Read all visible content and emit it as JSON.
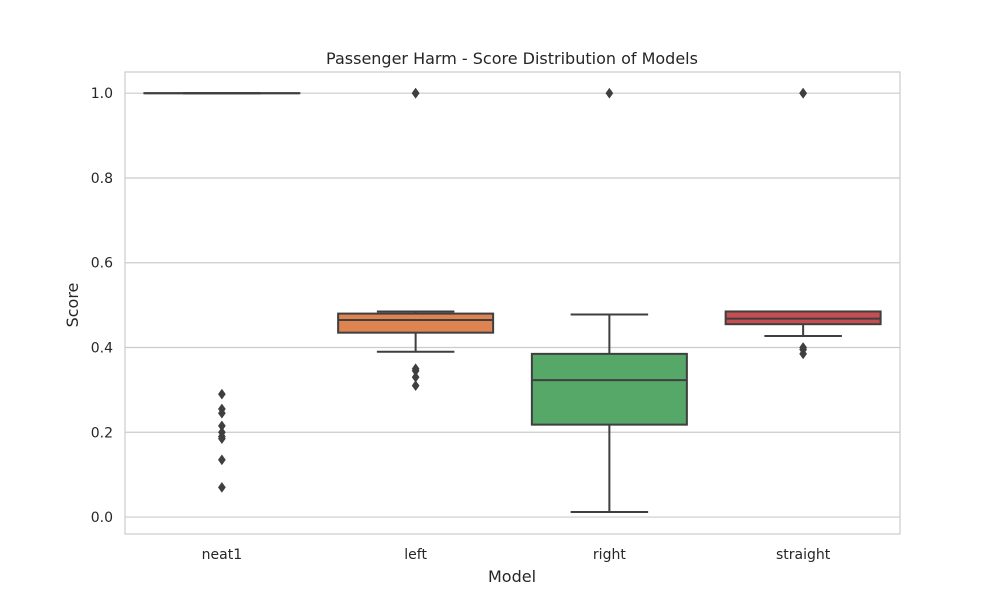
{
  "chart_data": {
    "type": "box",
    "title": "Passenger Harm - Score Distribution of Models",
    "xlabel": "Model",
    "ylabel": "Score",
    "ylim": [
      -0.04,
      1.05
    ],
    "yticks": [
      "0.0",
      "0.2",
      "0.4",
      "0.6",
      "0.8",
      "1.0"
    ],
    "ytick_values": [
      0.0,
      0.2,
      0.4,
      0.6,
      0.8,
      1.0
    ],
    "grid": true,
    "categories": [
      "neat1",
      "left",
      "right",
      "straight"
    ],
    "boxes": [
      {
        "category": "neat1",
        "color": "#4c72b0",
        "whisker_low": 1.0,
        "q1": 1.0,
        "median": 1.0,
        "q3": 1.0,
        "whisker_high": 1.0,
        "outliers": [
          0.29,
          0.255,
          0.245,
          0.215,
          0.2,
          0.19,
          0.185,
          0.135,
          0.07
        ]
      },
      {
        "category": "left",
        "color": "#dd8452",
        "whisker_low": 0.39,
        "q1": 0.435,
        "median": 0.465,
        "q3": 0.48,
        "whisker_high": 0.485,
        "outliers": [
          0.35,
          0.345,
          0.33,
          0.31,
          1.0,
          1.0
        ]
      },
      {
        "category": "right",
        "color": "#55a868",
        "whisker_low": 0.012,
        "q1": 0.218,
        "median": 0.323,
        "q3": 0.385,
        "whisker_high": 0.478,
        "outliers": [
          1.0
        ]
      },
      {
        "category": "straight",
        "color": "#c44e52",
        "whisker_low": 0.427,
        "q1": 0.455,
        "median": 0.468,
        "q3": 0.485,
        "whisker_high": 0.485,
        "outliers": [
          0.4,
          0.395,
          0.385,
          1.0,
          1.0
        ]
      }
    ]
  }
}
